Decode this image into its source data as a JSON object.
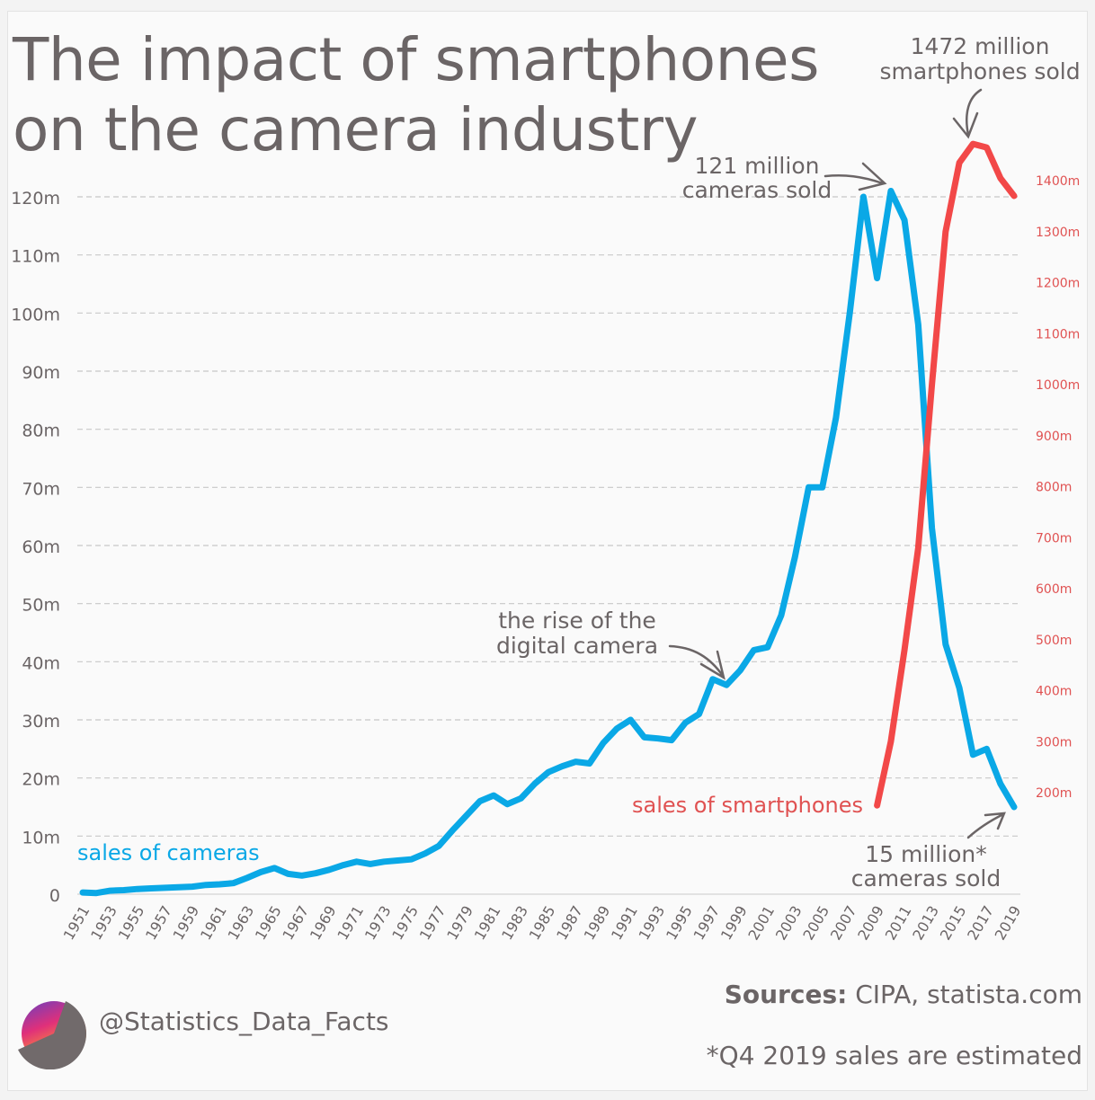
{
  "header": {
    "title_line1": "The impact of smartphones",
    "title_line2": "on the camera industry"
  },
  "footer": {
    "handle": "@Statistics_Data_Facts",
    "sources_label": "Sources:",
    "sources_text": " CIPA, statista.com",
    "note": "*Q4 2019 sales are estimated"
  },
  "colors": {
    "cameras": "#0aa8e6",
    "smartphones": "#f24848",
    "text": "#6b6566",
    "grid": "#c8c8c8",
    "right_axis_text": "#e05252"
  },
  "chart_data": {
    "type": "line",
    "title": "The impact of smartphones on the camera industry",
    "xlabel": "",
    "ylabel": "",
    "grid": true,
    "x": [
      1951,
      1952,
      1953,
      1954,
      1955,
      1956,
      1957,
      1958,
      1959,
      1960,
      1961,
      1962,
      1963,
      1964,
      1965,
      1966,
      1967,
      1968,
      1969,
      1970,
      1971,
      1972,
      1973,
      1974,
      1975,
      1976,
      1977,
      1978,
      1979,
      1980,
      1981,
      1982,
      1983,
      1984,
      1985,
      1986,
      1987,
      1988,
      1989,
      1990,
      1991,
      1992,
      1993,
      1994,
      1995,
      1996,
      1997,
      1998,
      1999,
      2000,
      2001,
      2002,
      2003,
      2004,
      2005,
      2006,
      2007,
      2008,
      2009,
      2010,
      2011,
      2012,
      2013,
      2014,
      2015,
      2016,
      2017,
      2018,
      2019
    ],
    "x_tick_labels": [
      "1951",
      "1953",
      "1955",
      "1957",
      "1959",
      "1961",
      "1963",
      "1965",
      "1967",
      "1969",
      "1971",
      "1973",
      "1975",
      "1977",
      "1979",
      "1981",
      "1983",
      "1985",
      "1987",
      "1989",
      "1991",
      "1993",
      "1995",
      "1997",
      "1999",
      "2001",
      "2003",
      "2005",
      "2007",
      "2009",
      "2011",
      "2013",
      "2015",
      "2017",
      "2019"
    ],
    "left_axis": {
      "range": [
        0,
        120
      ],
      "unit": "million",
      "tick_labels": [
        "0",
        "10m",
        "20m",
        "30m",
        "40m",
        "50m",
        "60m",
        "70m",
        "80m",
        "90m",
        "100m",
        "110m",
        "120m"
      ],
      "tick_values": [
        0,
        10,
        20,
        30,
        40,
        50,
        60,
        70,
        80,
        90,
        100,
        110,
        120
      ]
    },
    "right_axis": {
      "range": [
        200,
        1400
      ],
      "unit": "million",
      "tick_labels": [
        "200m",
        "300m",
        "400m",
        "500m",
        "600m",
        "700m",
        "800m",
        "900m",
        "1000m",
        "1100m",
        "1200m",
        "1300m",
        "1400m"
      ],
      "tick_values": [
        200,
        300,
        400,
        500,
        600,
        700,
        800,
        900,
        1000,
        1100,
        1200,
        1300,
        1400
      ]
    },
    "series": [
      {
        "name": "sales of cameras",
        "axis": "left",
        "x_start": 1951,
        "values": [
          0.3,
          0.2,
          0.6,
          0.7,
          0.9,
          1.0,
          1.1,
          1.2,
          1.3,
          1.6,
          1.7,
          1.9,
          2.8,
          3.8,
          4.5,
          3.5,
          3.2,
          3.6,
          4.2,
          5.0,
          5.6,
          5.2,
          5.6,
          5.8,
          6.0,
          7.0,
          8.3,
          11.0,
          13.5,
          16.0,
          17.0,
          15.5,
          16.5,
          19.0,
          21.0,
          22.0,
          22.8,
          22.5,
          26.0,
          28.5,
          30.0,
          27.0,
          26.8,
          26.5,
          29.5,
          31.0,
          37.0,
          36.0,
          38.5,
          42.0,
          42.5,
          48.0,
          58.0,
          70.0,
          70.0,
          82.0,
          100.0,
          120.0,
          106.0,
          121.0,
          116.0,
          98.0,
          63.0,
          43.0,
          35.5,
          24.0,
          25.0,
          19.0,
          15.0
        ]
      },
      {
        "name": "sales of smartphones",
        "axis": "right",
        "x_start": 2009,
        "values": [
          175,
          300,
          480,
          680,
          1000,
          1300,
          1435,
          1472,
          1465,
          1405,
          1370
        ]
      }
    ],
    "annotations": [
      {
        "id": "cameras_peak",
        "text_line1": "121 million",
        "text_line2": "cameras sold",
        "points_to": {
          "x": 2010,
          "series": "sales of cameras"
        }
      },
      {
        "id": "smartphones_peak",
        "text_line1": "1472 million",
        "text_line2": "smartphones sold",
        "points_to": {
          "x": 2016,
          "series": "sales of smartphones"
        }
      },
      {
        "id": "digital_rise",
        "text_line1": "the rise of the",
        "text_line2": "digital camera",
        "points_to": {
          "x": 1998,
          "series": "sales of cameras"
        }
      },
      {
        "id": "cameras_2019",
        "text_line1": "15 million*",
        "text_line2": "cameras sold",
        "points_to": {
          "x": 2019,
          "series": "sales of cameras"
        }
      }
    ],
    "legend": [
      {
        "label": "sales of cameras",
        "placement": "bottom-left"
      },
      {
        "label": "sales of smartphones",
        "placement": "bottom-right"
      }
    ]
  }
}
